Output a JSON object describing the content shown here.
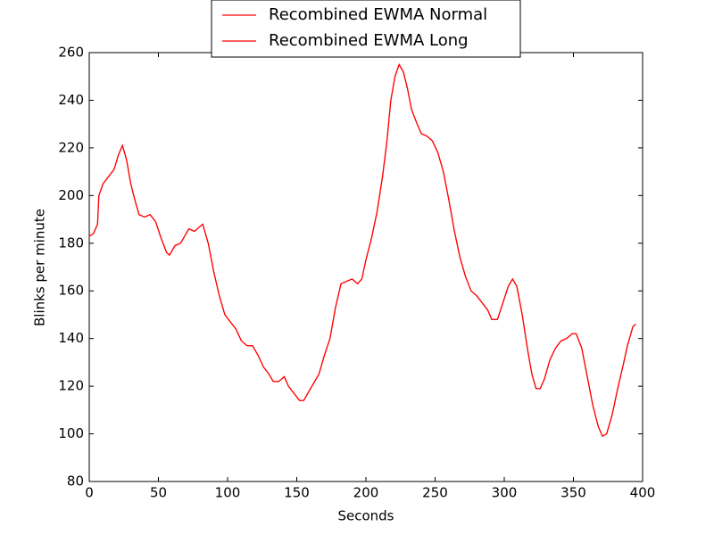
{
  "chart_data": {
    "type": "line",
    "xlabel": "Seconds",
    "ylabel": "Blinks per minute",
    "xlim": [
      0,
      400
    ],
    "xticks": [
      0,
      50,
      100,
      150,
      200,
      250,
      300,
      350,
      400
    ],
    "ylim": [
      80,
      260
    ],
    "yticks": [
      80,
      100,
      120,
      140,
      160,
      180,
      200,
      220,
      240,
      260
    ],
    "legend": "upper center",
    "x": [
      0,
      3,
      6,
      7,
      10,
      14,
      18,
      21,
      24,
      27,
      30,
      33,
      36,
      40,
      44,
      48,
      52,
      56,
      58,
      62,
      66,
      70,
      72,
      76,
      80,
      82,
      86,
      90,
      94,
      98,
      102,
      106,
      110,
      114,
      118,
      122,
      126,
      130,
      133,
      137,
      141,
      144,
      148,
      152,
      155,
      158,
      162,
      166,
      170,
      174,
      178,
      182,
      186,
      190,
      194,
      197,
      200,
      204,
      208,
      212,
      215,
      218,
      221,
      224,
      227,
      230,
      233,
      237,
      240,
      244,
      248,
      252,
      256,
      260,
      264,
      268,
      272,
      276,
      280,
      284,
      288,
      291,
      295,
      299,
      303,
      306,
      309,
      313,
      317,
      320,
      323,
      326,
      329,
      333,
      337,
      341,
      345,
      349,
      352,
      356,
      360,
      364,
      368,
      371,
      374,
      378,
      382,
      386,
      389,
      393,
      395
    ],
    "series": [
      {
        "name": "Recombined EWMA Normal",
        "color": "#ff0000",
        "values": [
          183,
          184,
          188,
          200,
          205,
          208,
          211,
          217,
          221,
          215,
          205,
          198,
          192,
          191,
          192,
          189,
          182,
          176,
          175,
          179,
          180,
          184,
          186,
          185,
          187,
          188,
          180,
          168,
          158,
          150,
          147,
          144,
          139,
          137,
          137,
          133,
          128,
          125,
          122,
          122,
          124,
          120,
          117,
          114,
          114,
          117,
          121,
          125,
          133,
          140,
          153,
          163,
          164,
          165,
          163,
          165,
          173,
          182,
          193,
          208,
          222,
          240,
          250,
          255,
          252,
          245,
          236,
          230,
          226,
          225,
          223,
          218,
          210,
          198,
          185,
          174,
          166,
          160,
          158,
          155,
          152,
          148,
          148,
          155,
          162,
          165,
          162,
          150,
          135,
          125,
          119,
          119,
          123,
          131,
          136,
          139,
          140,
          142,
          142,
          136,
          124,
          112,
          103,
          99,
          100,
          108,
          119,
          129,
          137,
          145,
          146
        ]
      },
      {
        "name": "Recombined EWMA Long",
        "color": "#ff0000",
        "values": [
          183,
          184,
          188,
          200,
          205,
          208,
          211,
          217,
          221,
          215,
          205,
          198,
          192,
          191,
          192,
          189,
          182,
          176,
          175,
          179,
          180,
          184,
          186,
          185,
          187,
          188,
          180,
          168,
          158,
          150,
          147,
          144,
          139,
          137,
          137,
          133,
          128,
          125,
          122,
          122,
          124,
          120,
          117,
          114,
          114,
          117,
          121,
          125,
          133,
          140,
          153,
          163,
          164,
          165,
          163,
          165,
          173,
          182,
          193,
          208,
          222,
          240,
          250,
          255,
          252,
          245,
          236,
          230,
          226,
          225,
          223,
          218,
          210,
          198,
          185,
          174,
          166,
          160,
          158,
          155,
          152,
          148,
          148,
          155,
          162,
          165,
          162,
          150,
          135,
          125,
          119,
          119,
          123,
          131,
          136,
          139,
          140,
          142,
          142,
          136,
          124,
          112,
          103,
          99,
          100,
          108,
          119,
          129,
          137,
          145,
          146
        ]
      }
    ]
  }
}
